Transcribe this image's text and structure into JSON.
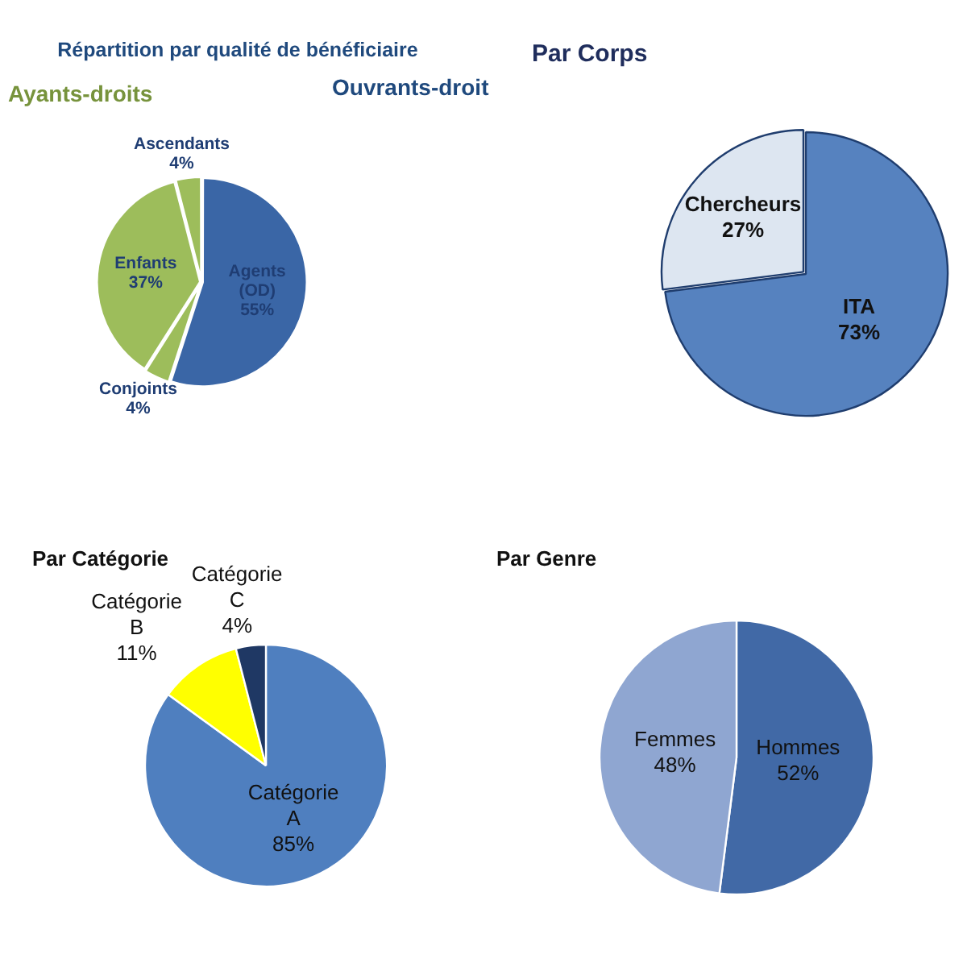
{
  "chart_data": [
    {
      "type": "pie",
      "title": "Répartition par qualité de bénéficiaire",
      "annotations": [
        "Ayants-droits",
        "Ouvrants-droit"
      ],
      "categories": [
        "Agents (OD)",
        "Conjoints",
        "Enfants",
        "Ascendants"
      ],
      "values": [
        55,
        4,
        37,
        4
      ],
      "value_labels": [
        "55%",
        "4%",
        "37%",
        "4%"
      ],
      "colors": [
        "#3a66a6",
        "#9dbd5b",
        "#9dbd5b",
        "#9dbd5b"
      ]
    },
    {
      "type": "pie",
      "title": "Par Corps",
      "categories": [
        "ITA",
        "Chercheurs"
      ],
      "values": [
        73,
        27
      ],
      "value_labels": [
        "73%",
        "27%"
      ],
      "colors": [
        "#5682bf",
        "#dde6f1"
      ]
    },
    {
      "type": "pie",
      "title": "Par Catégorie",
      "categories": [
        "Catégorie A",
        "Catégorie B",
        "Catégorie C"
      ],
      "values": [
        85,
        11,
        4
      ],
      "value_labels": [
        "85%",
        "11%",
        "4%"
      ],
      "colors": [
        "#4f7fbf",
        "#ffff00",
        "#1f3864"
      ]
    },
    {
      "type": "pie",
      "title": "Par Genre",
      "categories": [
        "Hommes",
        "Femmes"
      ],
      "values": [
        52,
        48
      ],
      "value_labels": [
        "52%",
        "48%"
      ],
      "colors": [
        "#4169a6",
        "#8fa6d1"
      ]
    }
  ]
}
